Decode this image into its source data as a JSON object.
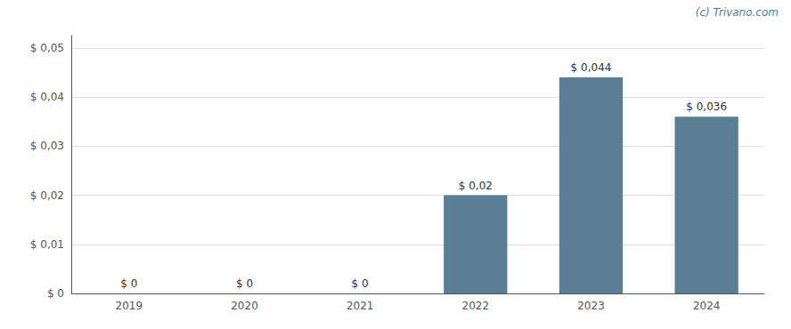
{
  "chart_data": {
    "type": "bar",
    "categories": [
      "2019",
      "2020",
      "2021",
      "2022",
      "2023",
      "2024"
    ],
    "values": [
      0,
      0,
      0,
      0.02,
      0.044,
      0.036
    ],
    "value_labels": [
      "$ 0",
      "$ 0",
      "$ 0",
      "$ 0,02",
      "$ 0,044",
      "$ 0,036"
    ],
    "data_labels": true,
    "color": "#5a7f95",
    "ylim": [
      0,
      0.0525
    ],
    "yticks": [
      {
        "value": 0,
        "label": "$ 0"
      },
      {
        "value": 0.01,
        "label": "$ 0,01"
      },
      {
        "value": 0.02,
        "label": "$ 0,02"
      },
      {
        "value": 0.03,
        "label": "$ 0,03"
      },
      {
        "value": 0.04,
        "label": "$ 0,04"
      },
      {
        "value": 0.05,
        "label": "$ 0,05"
      }
    ],
    "grid": true,
    "annotations": [
      "(c) Trivano.com"
    ]
  }
}
